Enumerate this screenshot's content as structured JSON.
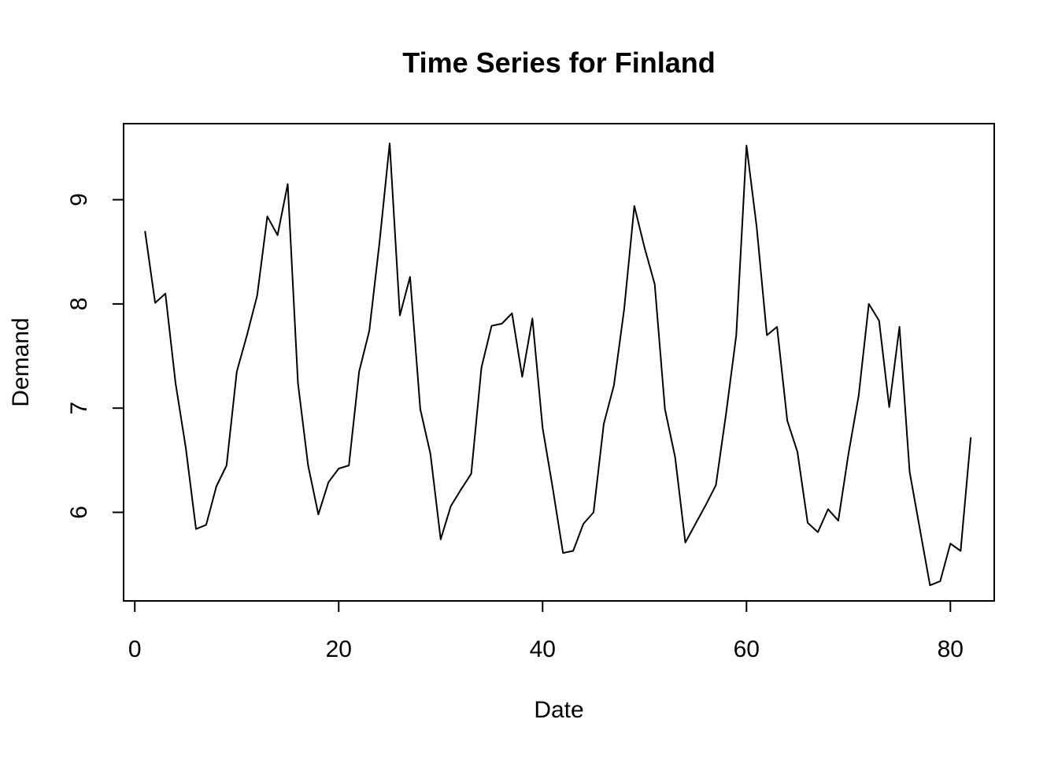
{
  "chart_data": {
    "type": "line",
    "title": "Time Series for Finland",
    "xlabel": "Date",
    "ylabel": "Demand",
    "xlim": [
      -1.1,
      84.3
    ],
    "ylim": [
      5.15,
      9.73
    ],
    "xticks": [
      0,
      20,
      40,
      60,
      80
    ],
    "yticks": [
      6,
      7,
      8,
      9
    ],
    "grid": false,
    "legend": "none",
    "line_color": "#000000",
    "series": [
      {
        "x": [
          1,
          2,
          3,
          4,
          5,
          6,
          7,
          8,
          9,
          10,
          11,
          12,
          13,
          14,
          15,
          16,
          17,
          18,
          19,
          20,
          21,
          22,
          23,
          24,
          25,
          26,
          27,
          28,
          29,
          30,
          31,
          32,
          33,
          34,
          35,
          36,
          37,
          38,
          39,
          40,
          41,
          42,
          43,
          44,
          45,
          46,
          47,
          48,
          49,
          50,
          51,
          52,
          53,
          54,
          55,
          56,
          57,
          58,
          59,
          60,
          61,
          62,
          63,
          64,
          65,
          66,
          67,
          68,
          69,
          70,
          71,
          72,
          73,
          74,
          75,
          76,
          77,
          78,
          79,
          80,
          81,
          82
        ],
        "values": [
          8.7,
          8.01,
          8.1,
          7.24,
          6.62,
          5.84,
          5.88,
          6.25,
          6.45,
          7.35,
          7.7,
          8.08,
          8.84,
          8.66,
          9.15,
          7.24,
          6.45,
          5.98,
          6.29,
          6.42,
          6.45,
          7.35,
          7.74,
          8.59,
          9.54,
          7.89,
          8.26,
          6.99,
          6.56,
          5.74,
          6.06,
          6.22,
          6.37,
          7.39,
          7.79,
          7.81,
          7.91,
          7.3,
          7.86,
          6.81,
          6.23,
          5.61,
          5.63,
          5.89,
          6.0,
          6.85,
          7.22,
          7.95,
          8.94,
          8.54,
          8.19,
          6.99,
          6.53,
          5.71,
          5.89,
          6.07,
          6.26,
          6.95,
          7.7,
          9.52,
          8.74,
          7.7,
          7.78,
          6.88,
          6.58,
          5.9,
          5.81,
          6.03,
          5.92,
          6.56,
          7.12,
          8.0,
          7.84,
          7.01,
          7.78,
          6.39,
          5.84,
          5.3,
          5.34,
          5.7,
          5.63,
          6.72
        ]
      }
    ]
  }
}
